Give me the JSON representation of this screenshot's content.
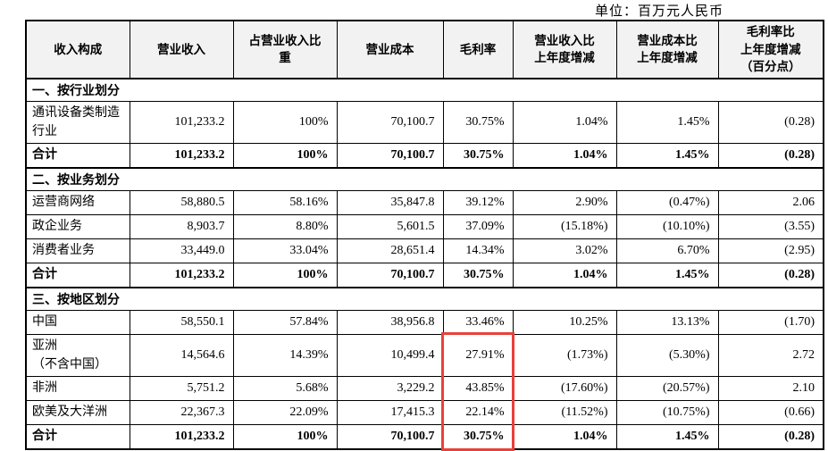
{
  "unit_label": "单位：百万元人民币",
  "table": {
    "column_headers": [
      "收入构成",
      "营业收入",
      "占营业收入比\n重",
      "营业成本",
      "毛利率",
      "营业收入比\n上年度增减",
      "营业成本比\n上年度增减",
      "毛利率比\n上年度增减\n（百分点）"
    ],
    "sections": [
      {
        "title": "一、按行业划分",
        "rows": [
          {
            "label": "通讯设备类制造\n行业",
            "is_total": false,
            "values": [
              "101,233.2",
              "100%",
              "70,100.7",
              "30.75%",
              "1.04%",
              "1.45%",
              "(0.28)"
            ]
          },
          {
            "label": "合计",
            "is_total": true,
            "values": [
              "101,233.2",
              "100%",
              "70,100.7",
              "30.75%",
              "1.04%",
              "1.45%",
              "(0.28)"
            ]
          }
        ]
      },
      {
        "title": "二、按业务划分",
        "rows": [
          {
            "label": "运营商网络",
            "is_total": false,
            "values": [
              "58,880.5",
              "58.16%",
              "35,847.8",
              "39.12%",
              "2.90%",
              "(0.47%)",
              "2.06"
            ]
          },
          {
            "label": "政企业务",
            "is_total": false,
            "values": [
              "8,903.7",
              "8.80%",
              "5,601.5",
              "37.09%",
              "(15.18%)",
              "(10.10%)",
              "(3.55)"
            ]
          },
          {
            "label": "消费者业务",
            "is_total": false,
            "values": [
              "33,449.0",
              "33.04%",
              "28,651.4",
              "14.34%",
              "3.02%",
              "6.70%",
              "(2.95)"
            ]
          },
          {
            "label": "合计",
            "is_total": true,
            "values": [
              "101,233.2",
              "100%",
              "70,100.7",
              "30.75%",
              "1.04%",
              "1.45%",
              "(0.28)"
            ]
          }
        ]
      },
      {
        "title": "三、按地区划分",
        "rows": [
          {
            "label": "中国",
            "is_total": false,
            "values": [
              "58,550.1",
              "57.84%",
              "38,956.8",
              "33.46%",
              "10.25%",
              "13.13%",
              "(1.70)"
            ]
          },
          {
            "label": "亚洲（不含中国）",
            "is_total": false,
            "values": [
              "14,564.6",
              "14.39%",
              "10,499.4",
              "27.91%",
              "(1.73%)",
              "(5.30%)",
              "2.72"
            ]
          },
          {
            "label": "非洲",
            "is_total": false,
            "values": [
              "5,751.2",
              "5.68%",
              "3,229.2",
              "43.85%",
              "(17.60%)",
              "(20.57%)",
              "2.10"
            ]
          },
          {
            "label": "欧美及大洋洲",
            "is_total": false,
            "values": [
              "22,367.3",
              "22.09%",
              "17,415.3",
              "22.14%",
              "(11.52%)",
              "(10.75%)",
              "(0.66)"
            ]
          },
          {
            "label": "合计",
            "is_total": true,
            "values": [
              "101,233.2",
              "100%",
              "70,100.7",
              "30.75%",
              "1.04%",
              "1.45%",
              "(0.28)"
            ]
          }
        ]
      }
    ]
  },
  "highlight": {
    "color": "#e8413a",
    "section_index": 2,
    "row_start": 1,
    "row_end": 4,
    "value_index": 3,
    "highlighted_values": [
      "27.91%",
      "43.85%",
      "22.14%",
      "30.75%"
    ]
  }
}
